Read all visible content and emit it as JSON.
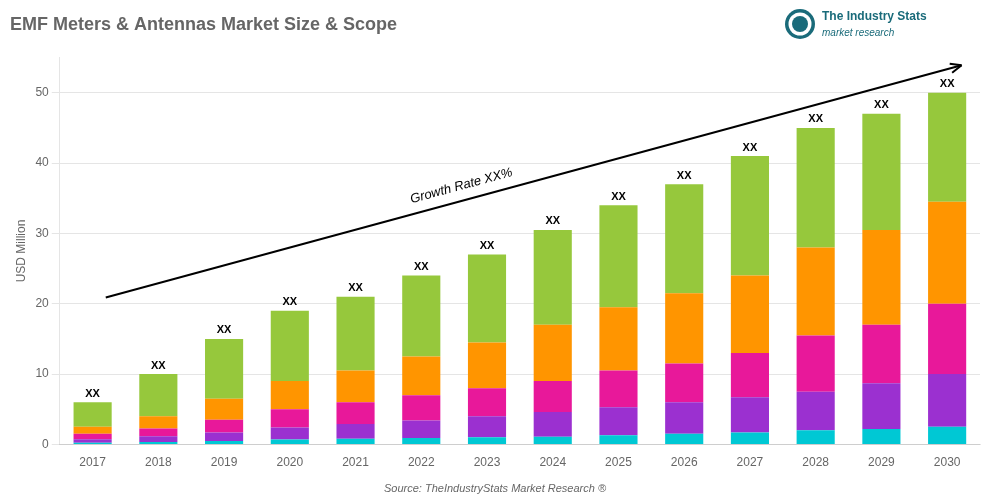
{
  "chart_data": {
    "type": "bar",
    "title": "EMF Meters & Antennas Market Size & Scope",
    "ylabel": "USD Million",
    "categories": [
      "2017",
      "2018",
      "2019",
      "2020",
      "2021",
      "2022",
      "2023",
      "2024",
      "2025",
      "2026",
      "2027",
      "2028",
      "2029",
      "2030"
    ],
    "series": [
      {
        "color": "#00c8d4",
        "values": [
          0.25,
          0.35,
          0.5,
          0.7,
          0.8,
          0.9,
          1.0,
          1.1,
          1.3,
          1.5,
          1.7,
          2.0,
          2.2,
          2.5
        ]
      },
      {
        "color": "#9b30d0",
        "values": [
          0.5,
          0.8,
          1.2,
          1.7,
          2.1,
          2.5,
          3.0,
          3.5,
          4.0,
          4.5,
          5.0,
          5.5,
          6.5,
          7.5
        ]
      },
      {
        "color": "#e8189a",
        "values": [
          0.75,
          1.1,
          1.8,
          2.6,
          3.1,
          3.6,
          4.0,
          4.4,
          5.2,
          5.5,
          6.3,
          8.0,
          8.3,
          10.0
        ]
      },
      {
        "color": "#ff9500",
        "values": [
          1.0,
          1.75,
          3.0,
          4.0,
          4.5,
          5.5,
          6.5,
          8.0,
          9.0,
          10.0,
          11.0,
          12.5,
          13.5,
          14.5
        ]
      },
      {
        "color": "#96c83c",
        "values": [
          3.5,
          6.0,
          8.5,
          10.0,
          10.5,
          11.5,
          12.5,
          13.5,
          14.5,
          15.5,
          17.0,
          17.0,
          16.5,
          15.5
        ]
      }
    ],
    "stacked": true,
    "ylim": [
      0,
      55
    ],
    "yticks": [
      0,
      10,
      20,
      30,
      40,
      50
    ],
    "grid": true,
    "total_labels": [
      "XX",
      "XX",
      "XX",
      "XX",
      "XX",
      "XX",
      "XX",
      "XX",
      "XX",
      "XX",
      "XX",
      "XX",
      "XX",
      "XX"
    ],
    "annotations": [
      "Growth Rate XX%"
    ],
    "source": "Source: TheIndustryStats Market Research ®",
    "logo": {
      "title": "The Industry Stats",
      "subtitle": "market research",
      "color": "#1a6b7a"
    }
  }
}
